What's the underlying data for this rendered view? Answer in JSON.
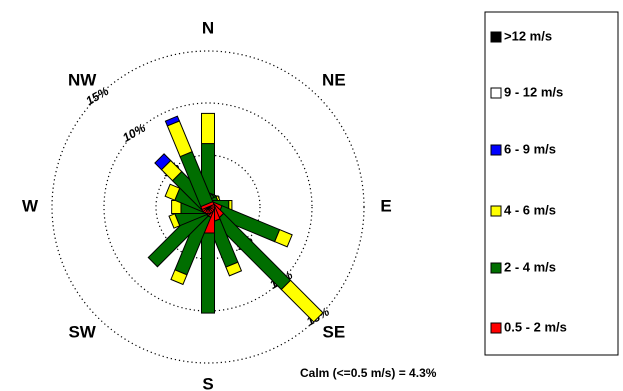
{
  "chart_data": {
    "type": "windrose",
    "categories": [
      "N",
      null,
      "NE",
      null,
      "E",
      null,
      "SE",
      null,
      "S",
      null,
      "SW",
      null,
      "W",
      null,
      "NW",
      null
    ],
    "series": [
      {
        "name": ">12 m/s",
        "color": "#000000",
        "values": [
          0,
          0,
          0,
          0,
          0,
          0,
          0,
          0,
          0,
          0,
          0,
          0,
          0,
          0,
          0,
          0
        ]
      },
      {
        "name": "9 - 12 m/s",
        "color": "#ffffff",
        "values": [
          0,
          0,
          0,
          0,
          0,
          0,
          0,
          0,
          0,
          0,
          0,
          0,
          0,
          0,
          0,
          0
        ]
      },
      {
        "name": "6 - 9 m/s",
        "color": "#0000ff",
        "values": [
          0,
          0,
          0,
          0,
          0,
          0,
          0,
          0,
          0,
          0,
          0,
          0,
          0,
          0,
          0.9,
          0.5
        ]
      },
      {
        "name": "4 - 6 m/s",
        "color": "#ffff00",
        "values": [
          2.9,
          0,
          0,
          0.2,
          0.3,
          1.3,
          4.4,
          0.9,
          0,
          1.0,
          0,
          0.6,
          0.9,
          1.0,
          1.5,
          3.2
        ]
      },
      {
        "name": "2 - 4 m/s",
        "color": "#006e00",
        "values": [
          5.8,
          1.0,
          0.8,
          0.8,
          1.6,
          6.0,
          9.1,
          4.5,
          7.7,
          6.0,
          6.9,
          2.8,
          2.3,
          2.9,
          3.9,
          5.2
        ]
      },
      {
        "name": "0.5 - 2 m/s",
        "color": "#ff0000",
        "values": [
          0.3,
          0.3,
          0.3,
          0.3,
          0.4,
          1.2,
          1.5,
          1.5,
          2.5,
          0.8,
          0.6,
          0.4,
          0.3,
          0.3,
          0.3,
          0.3
        ]
      }
    ],
    "rlim": [
      0,
      15
    ],
    "rticks": [
      {
        "value": 5,
        "label": "5%"
      },
      {
        "value": 10,
        "label": "10%"
      },
      {
        "value": 15,
        "label": "15%"
      }
    ],
    "annotation": "Calm (<=0.5 m/s) = 4.3%"
  }
}
